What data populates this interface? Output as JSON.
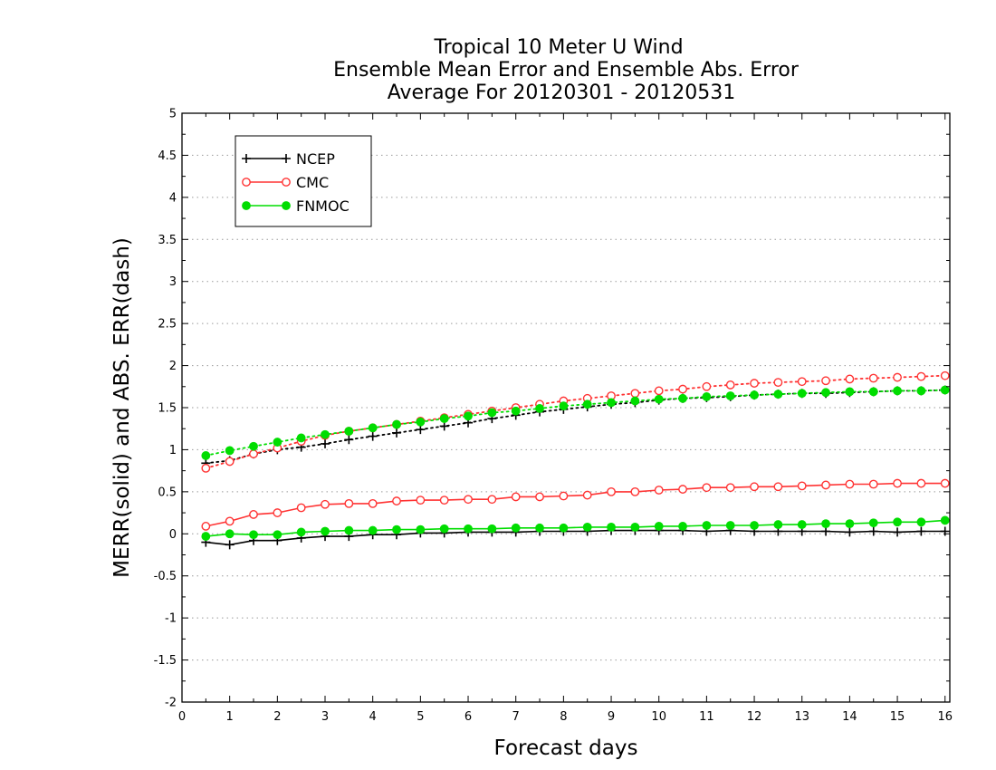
{
  "chart_data": {
    "type": "line",
    "title": [
      "Tropical 10 Meter U Wind",
      "Ensemble Mean Error and Ensemble Abs. Error",
      "Average For 20120301 - 20120531"
    ],
    "xlabel": "Forecast days",
    "ylabel": "MERR(solid) and ABS. ERR(dash)",
    "xlim": [
      0,
      16.1
    ],
    "ylim": [
      -2,
      5
    ],
    "xticks": [
      0,
      1,
      2,
      3,
      4,
      5,
      6,
      7,
      8,
      9,
      10,
      11,
      12,
      13,
      14,
      15,
      16
    ],
    "xtick_labels": [
      "0",
      "1",
      "2",
      "3",
      "4",
      "5",
      "6",
      "7",
      "8",
      "9",
      "10",
      "11",
      "12",
      "13",
      "14",
      "15",
      "16"
    ],
    "yticks": [
      -2,
      -1.5,
      -1,
      -0.5,
      0,
      0.5,
      1,
      1.5,
      2,
      2.5,
      3,
      3.5,
      4,
      4.5,
      5
    ],
    "ytick_labels": [
      "-2",
      "-1.5",
      "-1",
      "-0.5",
      "0",
      "0.5",
      "1",
      "1.5",
      "2",
      "2.5",
      "3",
      "3.5",
      "4",
      "4.5",
      "5"
    ],
    "grid": "horizontal dotted",
    "legend_position": "top-left",
    "x": [
      0.5,
      1,
      1.5,
      2,
      2.5,
      3,
      3.5,
      4,
      4.5,
      5,
      5.5,
      6,
      6.5,
      7,
      7.5,
      8,
      8.5,
      9,
      9.5,
      10,
      10.5,
      11,
      11.5,
      12,
      12.5,
      13,
      13.5,
      14,
      14.5,
      15,
      15.5,
      16
    ],
    "series": [
      {
        "name": "NCEP",
        "color": "#000000",
        "marker": "plus",
        "merr": [
          -0.1,
          -0.13,
          -0.08,
          -0.08,
          -0.05,
          -0.03,
          -0.03,
          -0.01,
          -0.01,
          0.01,
          0.01,
          0.02,
          0.02,
          0.02,
          0.03,
          0.03,
          0.03,
          0.04,
          0.04,
          0.04,
          0.04,
          0.03,
          0.04,
          0.03,
          0.03,
          0.03,
          0.03,
          0.02,
          0.03,
          0.02,
          0.03,
          0.03
        ],
        "abs_err": [
          0.84,
          0.87,
          0.95,
          1.0,
          1.03,
          1.07,
          1.12,
          1.16,
          1.2,
          1.24,
          1.28,
          1.32,
          1.37,
          1.41,
          1.45,
          1.48,
          1.51,
          1.54,
          1.56,
          1.59,
          1.61,
          1.62,
          1.63,
          1.65,
          1.66,
          1.67,
          1.67,
          1.68,
          1.69,
          1.7,
          1.7,
          1.71
        ]
      },
      {
        "name": "CMC",
        "color": "#ff3333",
        "marker": "open-circle",
        "merr": [
          0.09,
          0.15,
          0.23,
          0.25,
          0.31,
          0.35,
          0.36,
          0.36,
          0.39,
          0.4,
          0.4,
          0.41,
          0.41,
          0.44,
          0.44,
          0.45,
          0.46,
          0.5,
          0.5,
          0.52,
          0.53,
          0.55,
          0.55,
          0.56,
          0.56,
          0.57,
          0.58,
          0.59,
          0.59,
          0.6,
          0.6,
          0.6
        ],
        "abs_err": [
          0.78,
          0.86,
          0.95,
          1.02,
          1.1,
          1.17,
          1.22,
          1.26,
          1.3,
          1.34,
          1.38,
          1.42,
          1.46,
          1.5,
          1.54,
          1.58,
          1.61,
          1.64,
          1.67,
          1.7,
          1.72,
          1.75,
          1.77,
          1.79,
          1.8,
          1.81,
          1.82,
          1.84,
          1.85,
          1.86,
          1.87,
          1.88
        ]
      },
      {
        "name": "FNMOC",
        "color": "#00dd00",
        "marker": "filled-circle",
        "merr": [
          -0.03,
          0.0,
          -0.01,
          -0.01,
          0.02,
          0.03,
          0.04,
          0.04,
          0.05,
          0.05,
          0.06,
          0.06,
          0.06,
          0.07,
          0.07,
          0.07,
          0.08,
          0.08,
          0.08,
          0.09,
          0.09,
          0.1,
          0.1,
          0.1,
          0.11,
          0.11,
          0.12,
          0.12,
          0.13,
          0.14,
          0.14,
          0.16
        ],
        "abs_err": [
          0.93,
          0.99,
          1.04,
          1.09,
          1.14,
          1.18,
          1.22,
          1.26,
          1.3,
          1.33,
          1.37,
          1.4,
          1.44,
          1.46,
          1.49,
          1.52,
          1.54,
          1.56,
          1.58,
          1.6,
          1.61,
          1.63,
          1.64,
          1.65,
          1.66,
          1.67,
          1.68,
          1.69,
          1.69,
          1.7,
          1.7,
          1.71
        ]
      }
    ]
  }
}
